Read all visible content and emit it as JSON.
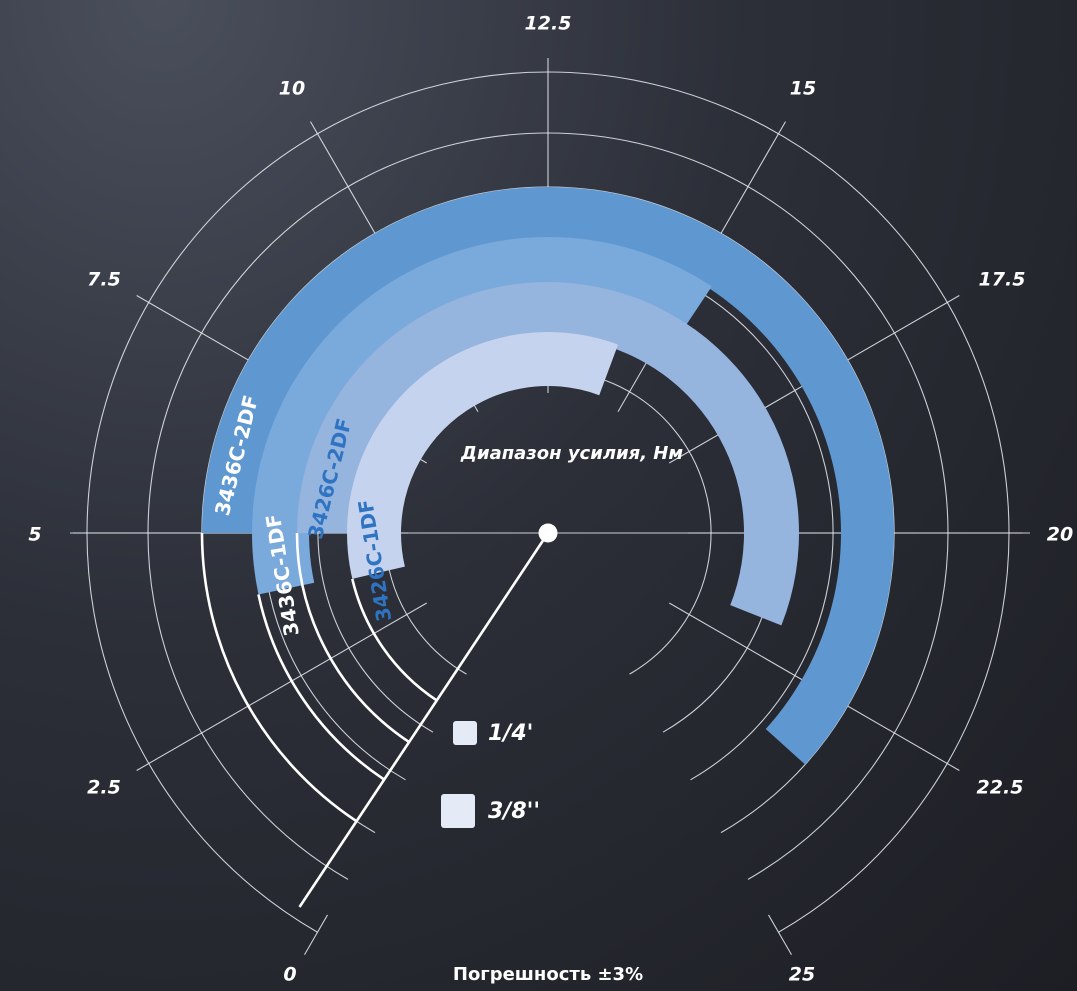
{
  "chart_data": {
    "type": "radial-bar",
    "title": "Диапазон усилия, Нм",
    "note": "Погрешность ±3%",
    "axis": {
      "min": 0,
      "max": 25,
      "ticks": [
        "0",
        "2.5",
        "5",
        "7.5",
        "10",
        "12.5",
        "15",
        "17.5",
        "20",
        "22.5",
        "25"
      ]
    },
    "series": [
      {
        "name": "3436C-2DF",
        "start": 5,
        "end": 23.5,
        "color": "#5f98d0",
        "label_color": "#ffffff"
      },
      {
        "name": "3436C-1DF",
        "start": 4.0,
        "end": 15.3,
        "color": "#7aa9db",
        "label_color": "#ffffff"
      },
      {
        "name": "3426C-2DF",
        "start": 5,
        "end": 21.8,
        "color": "#95b4de",
        "label_color": "#2f74c2"
      },
      {
        "name": "3426C-1DF",
        "start": 3.9,
        "end": 14.2,
        "color": "#c6d3ee",
        "label_color": "#2f74c2"
      }
    ],
    "legend": [
      {
        "label": "1/4'",
        "color": "#e4eaf6"
      },
      {
        "label": "3/8''",
        "color": "#e4eaf6"
      }
    ],
    "needle_value": 0.3
  }
}
